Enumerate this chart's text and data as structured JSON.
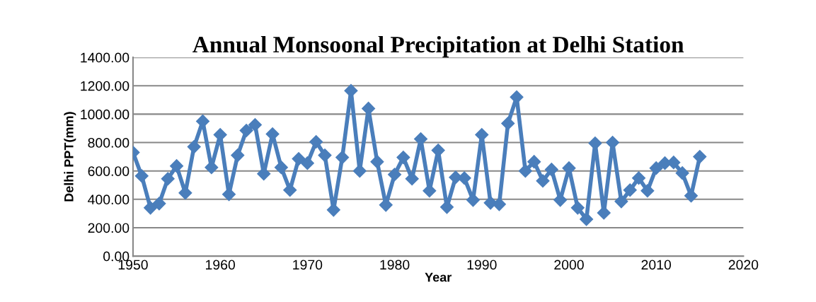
{
  "chart_data": {
    "type": "line",
    "title": "Annual Monsoonal Precipitation at Delhi Station",
    "xlabel": "Year",
    "ylabel": "Delhi PPT(mm)",
    "x": [
      1950,
      1951,
      1952,
      1953,
      1954,
      1955,
      1956,
      1957,
      1958,
      1959,
      1960,
      1961,
      1962,
      1963,
      1964,
      1965,
      1966,
      1967,
      1968,
      1969,
      1970,
      1971,
      1972,
      1973,
      1974,
      1975,
      1976,
      1977,
      1978,
      1979,
      1980,
      1981,
      1982,
      1983,
      1984,
      1985,
      1986,
      1987,
      1988,
      1989,
      1990,
      1991,
      1992,
      1993,
      1994,
      1995,
      1996,
      1997,
      1998,
      1999,
      2000,
      2001,
      2002,
      2003,
      2004,
      2005,
      2006,
      2007,
      2008,
      2009,
      2010,
      2011,
      2012,
      2013,
      2014,
      2015
    ],
    "series": [
      {
        "color": "#4a7ebb",
        "values": [
          730,
          565,
          340,
          370,
          545,
          635,
          445,
          770,
          950,
          625,
          855,
          435,
          710,
          885,
          925,
          580,
          860,
          625,
          465,
          685,
          655,
          805,
          710,
          325,
          695,
          1165,
          600,
          1040,
          665,
          360,
          575,
          695,
          545,
          825,
          460,
          745,
          345,
          555,
          550,
          395,
          855,
          375,
          365,
          935,
          1120,
          600,
          665,
          530,
          610,
          395,
          620,
          340,
          260,
          795,
          305,
          800,
          385,
          465,
          550,
          460,
          620,
          655,
          660,
          585,
          425,
          700
        ]
      }
    ],
    "xlim": [
      1950,
      2020
    ],
    "xticks": [
      1950,
      1960,
      1970,
      1980,
      1990,
      2000,
      2010,
      2020
    ],
    "ylim": [
      0,
      1400
    ],
    "yticks": [
      {
        "value": 0,
        "label": "0.00"
      },
      {
        "value": 200,
        "label": "200.00"
      },
      {
        "value": 400,
        "label": "400.00"
      },
      {
        "value": 600,
        "label": "600.00"
      },
      {
        "value": 800,
        "label": "800.00"
      },
      {
        "value": 1000,
        "label": "1000.00"
      },
      {
        "value": 1200,
        "label": "1200.00"
      },
      {
        "value": 1400,
        "label": "1400.00"
      }
    ],
    "grid": "y",
    "marker": "diamond",
    "line_style": "solid",
    "legend": false
  }
}
